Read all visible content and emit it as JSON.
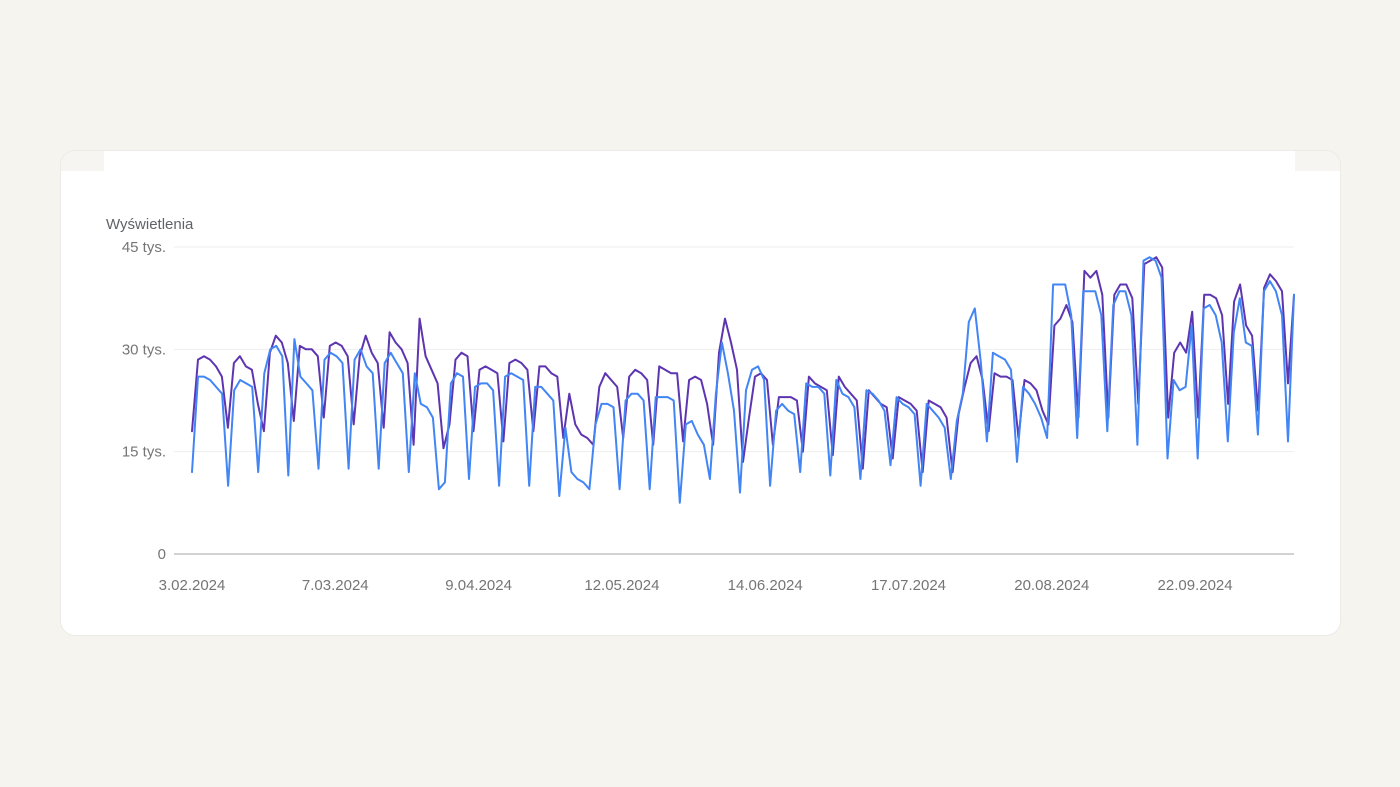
{
  "chart_data": {
    "type": "line",
    "ylabel": "Wyświetlenia",
    "ylim": [
      0,
      45000
    ],
    "y_ticks": [
      {
        "value": 0,
        "label": "0"
      },
      {
        "value": 15000,
        "label": "15 tys."
      },
      {
        "value": 30000,
        "label": "30 tys."
      },
      {
        "value": 45000,
        "label": "45 tys."
      }
    ],
    "x_ticks": [
      "3.02.2024",
      "7.03.2024",
      "9.04.2024",
      "12.05.2024",
      "14.06.2024",
      "17.07.2024",
      "20.08.2024",
      "22.09.2024"
    ],
    "x_range": [
      "2024-02-03",
      "2024-10-19"
    ],
    "grid": true,
    "series": [
      {
        "color": "#5e35b1",
        "values": [
          18000,
          28500,
          29000,
          28500,
          27500,
          26000,
          18500,
          28000,
          29000,
          27500,
          27000,
          22000,
          18000,
          29500,
          32000,
          31000,
          28000,
          19500,
          30500,
          30000,
          30000,
          29000,
          20000,
          30500,
          31000,
          30500,
          29000,
          19000,
          29000,
          32000,
          29500,
          28000,
          18500,
          32500,
          31000,
          30000,
          28000,
          16000,
          34500,
          29000,
          27000,
          25000,
          15500,
          19000,
          28500,
          29500,
          29000,
          18000,
          27000,
          27500,
          27000,
          26500,
          16500,
          28000,
          28500,
          28000,
          27000,
          18000,
          27500,
          27500,
          26500,
          26000,
          17000,
          23500,
          19000,
          17500,
          17000,
          16000,
          24500,
          26500,
          25500,
          24500,
          17000,
          26000,
          27000,
          26500,
          25500,
          16000,
          27500,
          27000,
          26500,
          26500,
          16500,
          25500,
          26000,
          25500,
          22000,
          16000,
          29500,
          34500,
          31000,
          27000,
          13500,
          20000,
          26000,
          26500,
          25500,
          16000,
          23000,
          23000,
          23000,
          22500,
          15000,
          26000,
          25000,
          24500,
          24000,
          14500,
          26000,
          24500,
          23500,
          22500,
          12500,
          24000,
          23000,
          22000,
          21500,
          14000,
          23000,
          22500,
          22000,
          21000,
          12000,
          22500,
          22000,
          21500,
          20000,
          12000,
          20500,
          24500,
          28000,
          29000,
          25500,
          18000,
          26500,
          26000,
          26000,
          25500,
          17000,
          25500,
          25000,
          24000,
          21000,
          19000,
          33500,
          34500,
          36500,
          34000,
          20000,
          41500,
          40500,
          41500,
          38000,
          20000,
          38000,
          39500,
          39500,
          37500,
          22000,
          42500,
          43000,
          43500,
          42000,
          20000,
          29500,
          31000,
          29500,
          35500,
          20000,
          38000,
          38000,
          37500,
          35000,
          22000,
          37000,
          39500,
          33500,
          32000,
          21000,
          39000,
          41000,
          40000,
          38500,
          25000,
          38000
        ]
      },
      {
        "color": "#4285f4",
        "values": [
          12000,
          26000,
          26000,
          25500,
          24500,
          23500,
          10000,
          24000,
          25500,
          25000,
          24500,
          12000,
          26500,
          30000,
          30500,
          29000,
          11500,
          31500,
          26000,
          25000,
          24000,
          12500,
          28500,
          29500,
          29000,
          28000,
          12500,
          28500,
          30000,
          27500,
          26500,
          12500,
          28000,
          29500,
          28000,
          26500,
          12000,
          26500,
          22000,
          21500,
          20000,
          9500,
          10500,
          25000,
          26500,
          26000,
          11000,
          24500,
          25000,
          25000,
          24000,
          10000,
          26000,
          26500,
          26000,
          25500,
          10000,
          24500,
          24500,
          23500,
          22500,
          8500,
          18500,
          12000,
          11000,
          10500,
          9500,
          19000,
          22000,
          22000,
          21500,
          9500,
          22500,
          23500,
          23500,
          22500,
          9500,
          23000,
          23000,
          23000,
          22500,
          7500,
          19000,
          19500,
          17500,
          16000,
          11000,
          23500,
          31000,
          26500,
          21000,
          9000,
          24000,
          27000,
          27500,
          25500,
          10000,
          21000,
          22000,
          21000,
          20500,
          12000,
          25000,
          24500,
          24500,
          23500,
          11500,
          25500,
          23500,
          23000,
          21500,
          11000,
          24000,
          23500,
          22500,
          21000,
          13000,
          23000,
          22000,
          21500,
          20500,
          10000,
          22000,
          21000,
          20000,
          18500,
          11000,
          19500,
          23500,
          34000,
          36000,
          28000,
          16500,
          29500,
          29000,
          28500,
          27000,
          13500,
          24500,
          23500,
          22000,
          20000,
          17000,
          39500,
          39500,
          39500,
          35000,
          17000,
          38500,
          38500,
          38500,
          35000,
          18000,
          36500,
          38500,
          38500,
          35000,
          16000,
          43000,
          43500,
          43000,
          40500,
          14000,
          25500,
          24000,
          24500,
          33500,
          14000,
          36000,
          36500,
          35000,
          31000,
          16500,
          32500,
          37500,
          31000,
          30500,
          17500,
          38500,
          40000,
          38500,
          35000,
          16500,
          38000
        ]
      }
    ]
  }
}
